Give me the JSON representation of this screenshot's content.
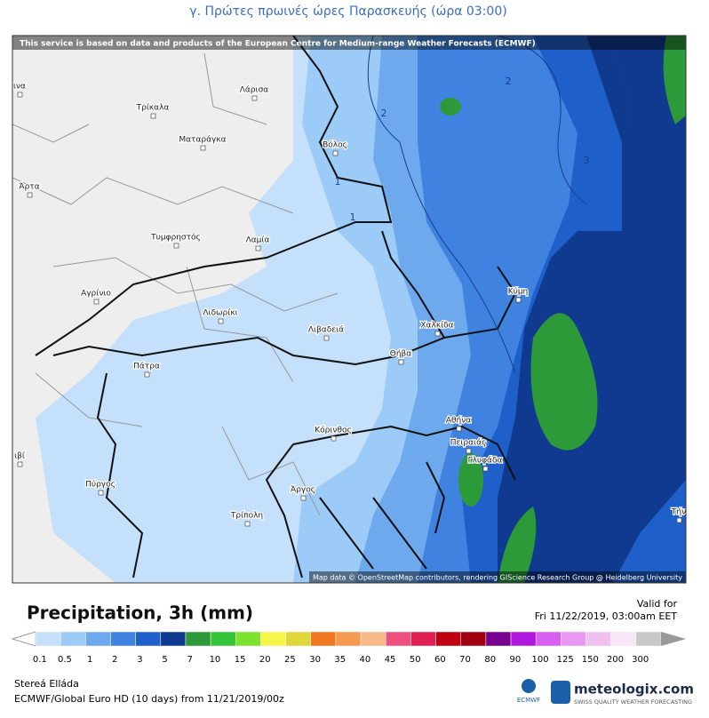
{
  "header": {
    "title": "γ. Πρώτες πρωινές ώρες Παρασκευής  (ώρα 03:00)"
  },
  "map": {
    "banner": "This service is based on data and products of the European Centre for Medium-range Weather Forecasts (ECMWF)",
    "attribution": "Map data © OpenStreetMap contributors, rendering GIScience Research Group @ Heidelberg University",
    "places": [
      "ινα",
      "Λάρισα",
      "Τρίκαλα",
      "Βόλος",
      "Ματαράγκα",
      "Άρτα",
      "Τυμφρηστός",
      "Λαμία",
      "Αγρίνιο",
      "Λιδωρίκι",
      "Λιβαδειά",
      "Χαλκίδα",
      "Κύμη",
      "Θήβα",
      "Πάτρα",
      "Αθήνα",
      "Κόρινθος",
      "Πειραιάς",
      "Γλυφάδα",
      "ιβί",
      "Πύργος",
      "Άργος",
      "Τρίπολη",
      "Τήν"
    ],
    "contour_labels": [
      "2",
      "2",
      "3",
      "1",
      "1"
    ]
  },
  "legend": {
    "title": "Precipitation, 3h (mm)",
    "valid_label": "Valid for",
    "valid_time": "Fri 11/22/2019, 03:00am EET",
    "labels": [
      "0.1",
      "0.5",
      "1",
      "2",
      "3",
      "5",
      "7",
      "10",
      "15",
      "20",
      "25",
      "30",
      "35",
      "40",
      "45",
      "50",
      "60",
      "70",
      "80",
      "90",
      "100",
      "125",
      "150",
      "200",
      "300"
    ]
  },
  "footer": {
    "region": "Stereá Elláda",
    "model": "ECMWF/Global Euro HD (10 days) from 11/21/2019/00z",
    "ecmwf": "ECMWF",
    "brand": "meteologix.com",
    "tagline": "SWISS QUALITY WEATHER FORECASTING"
  }
}
